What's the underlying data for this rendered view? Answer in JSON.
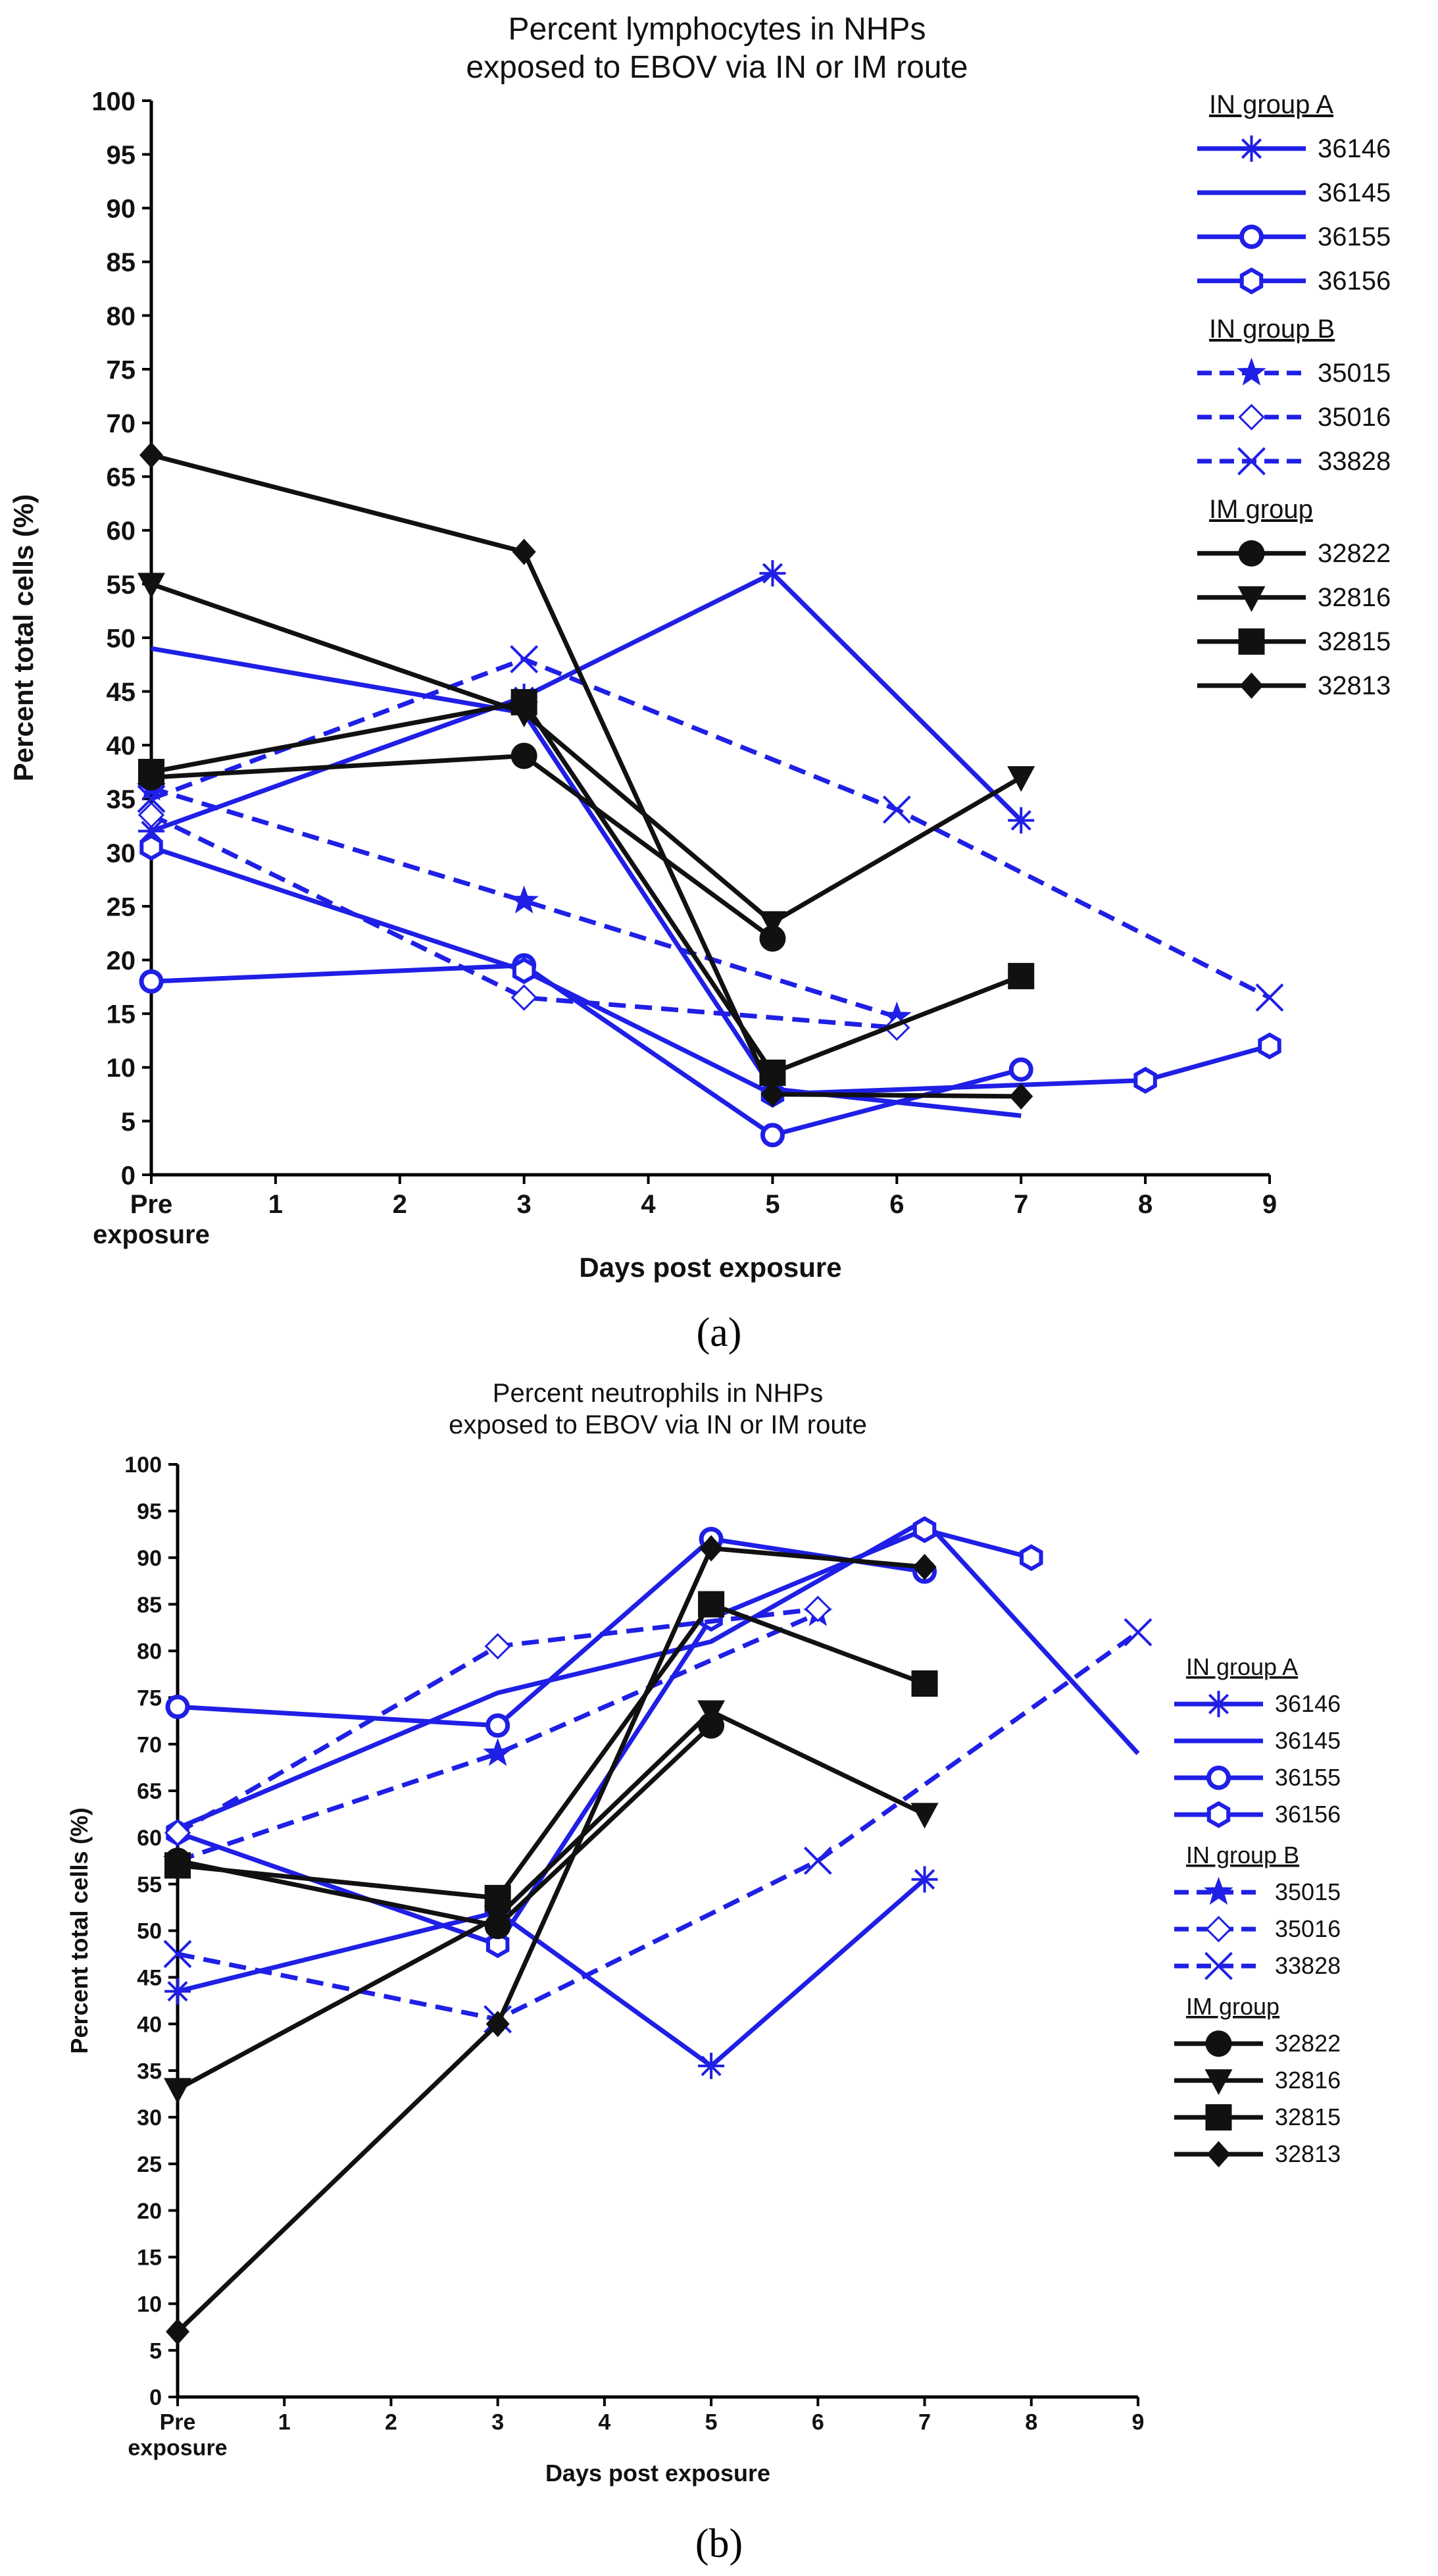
{
  "panel_labels": [
    "(a)",
    "(b)"
  ],
  "chart_data": [
    {
      "type": "line",
      "title": "Percent lymphocytes in NHPs exposed to EBOV via IN or IM route",
      "title_lines": [
        "Percent lymphocytes in NHPs",
        "exposed to EBOV via IN or IM route"
      ],
      "xlabel": "Days post exposure",
      "ylabel": "Percent total cells (%)",
      "xlim": [
        0,
        9
      ],
      "ylim": [
        0,
        100
      ],
      "xticks": [
        0,
        1,
        2,
        3,
        4,
        5,
        6,
        7,
        8,
        9
      ],
      "xtick_labels": [
        "Pre\nexposure",
        "1",
        "2",
        "3",
        "4",
        "5",
        "6",
        "7",
        "8",
        "9"
      ],
      "yticks": [
        0,
        5,
        10,
        15,
        20,
        25,
        30,
        35,
        40,
        45,
        50,
        55,
        60,
        65,
        70,
        75,
        80,
        85,
        90,
        95,
        100
      ],
      "grid": false,
      "legend_position": "right",
      "legend_groups": [
        {
          "title": "IN group  A",
          "series": [
            "36146",
            "36145",
            "36155",
            "36156"
          ]
        },
        {
          "title": "IN group  B",
          "series": [
            "35015",
            "35016",
            "33828"
          ]
        },
        {
          "title": "IM group",
          "series": [
            "32822",
            "32816",
            "32815",
            "32813"
          ]
        }
      ],
      "series": [
        {
          "name": "36146",
          "color": "#1f1fe6",
          "dash": "solid",
          "marker": "asterisk",
          "x": [
            0,
            3,
            5,
            7
          ],
          "y": [
            32,
            44.5,
            56,
            33
          ]
        },
        {
          "name": "36145",
          "color": "#1f1fe6",
          "dash": "solid",
          "marker": "none",
          "x": [
            0,
            3,
            5,
            7
          ],
          "y": [
            49,
            43,
            8,
            5.5
          ]
        },
        {
          "name": "36155",
          "color": "#1f1fe6",
          "dash": "solid",
          "marker": "open-circle",
          "x": [
            0,
            3,
            5,
            7
          ],
          "y": [
            18,
            19.5,
            3.7,
            9.8
          ]
        },
        {
          "name": "36156",
          "color": "#1f1fe6",
          "dash": "solid",
          "marker": "open-hexagon",
          "x": [
            0,
            3,
            5,
            8,
            9
          ],
          "y": [
            30.5,
            19,
            7.5,
            8.8,
            12
          ]
        },
        {
          "name": "35015",
          "color": "#1f1fe6",
          "dash": "dashed",
          "marker": "star",
          "x": [
            0,
            3,
            6
          ],
          "y": [
            36,
            25.5,
            14.7
          ]
        },
        {
          "name": "35016",
          "color": "#1f1fe6",
          "dash": "dashed",
          "marker": "open-diamond",
          "x": [
            0,
            3,
            6
          ],
          "y": [
            33.5,
            16.5,
            13.7
          ]
        },
        {
          "name": "33828",
          "color": "#1f1fe6",
          "dash": "dashed",
          "marker": "x",
          "x": [
            0,
            3,
            6,
            9
          ],
          "y": [
            35,
            48,
            34,
            16.5
          ]
        },
        {
          "name": "32822",
          "color": "#111111",
          "dash": "solid",
          "marker": "filled-circle",
          "x": [
            0,
            3,
            5
          ],
          "y": [
            37,
            39,
            22
          ]
        },
        {
          "name": "32816",
          "color": "#111111",
          "dash": "solid",
          "marker": "filled-triangle-down",
          "x": [
            0,
            3,
            5,
            7
          ],
          "y": [
            55,
            43,
            23.5,
            37
          ]
        },
        {
          "name": "32815",
          "color": "#111111",
          "dash": "solid",
          "marker": "filled-square",
          "x": [
            0,
            3,
            5,
            7
          ],
          "y": [
            37.5,
            44,
            9.5,
            18.5
          ]
        },
        {
          "name": "32813",
          "color": "#111111",
          "dash": "solid",
          "marker": "filled-diamond",
          "x": [
            0,
            3,
            5,
            7
          ],
          "y": [
            67,
            58,
            7.5,
            7.3
          ]
        }
      ]
    },
    {
      "type": "line",
      "title": "Percent neutrophils in NHPs exposed to EBOV via IN or IM route",
      "title_lines": [
        "Percent neutrophils in NHPs",
        "exposed to EBOV via IN or IM route"
      ],
      "xlabel": "Days post exposure",
      "ylabel": "Percent total cells (%)",
      "xlim": [
        0,
        9
      ],
      "ylim": [
        0,
        100
      ],
      "xticks": [
        0,
        1,
        2,
        3,
        4,
        5,
        6,
        7,
        8,
        9
      ],
      "xtick_labels": [
        "Pre\nexposure",
        "1",
        "2",
        "3",
        "4",
        "5",
        "6",
        "7",
        "8",
        "9"
      ],
      "yticks": [
        0,
        5,
        10,
        15,
        20,
        25,
        30,
        35,
        40,
        45,
        50,
        55,
        60,
        65,
        70,
        75,
        80,
        85,
        90,
        95,
        100
      ],
      "grid": false,
      "legend_position": "right",
      "legend_groups": [
        {
          "title": "IN group  A",
          "series": [
            "36146",
            "36145",
            "36155",
            "36156"
          ]
        },
        {
          "title": "IN group  B",
          "series": [
            "35015",
            "35016",
            "33828"
          ]
        },
        {
          "title": "IM group",
          "series": [
            "32822",
            "32816",
            "32815",
            "32813"
          ]
        }
      ],
      "series": [
        {
          "name": "36146",
          "color": "#1f1fe6",
          "dash": "solid",
          "marker": "asterisk",
          "x": [
            0,
            3,
            5,
            7
          ],
          "y": [
            43.5,
            52,
            35.5,
            55.5
          ]
        },
        {
          "name": "36145",
          "color": "#1f1fe6",
          "dash": "solid",
          "marker": "none",
          "x": [
            0,
            3,
            5,
            7,
            9
          ],
          "y": [
            61,
            75.5,
            81,
            94,
            69
          ]
        },
        {
          "name": "36155",
          "color": "#1f1fe6",
          "dash": "solid",
          "marker": "open-circle",
          "x": [
            0,
            3,
            5,
            7
          ],
          "y": [
            74,
            72,
            92,
            88.5
          ]
        },
        {
          "name": "36156",
          "color": "#1f1fe6",
          "dash": "solid",
          "marker": "open-hexagon",
          "x": [
            0,
            3,
            5,
            7,
            8
          ],
          "y": [
            60.5,
            48.5,
            83.5,
            93,
            90
          ]
        },
        {
          "name": "35015",
          "color": "#1f1fe6",
          "dash": "dashed",
          "marker": "star",
          "x": [
            0,
            3,
            6
          ],
          "y": [
            57.5,
            69,
            84
          ]
        },
        {
          "name": "35016",
          "color": "#1f1fe6",
          "dash": "dashed",
          "marker": "open-diamond",
          "x": [
            0,
            3,
            6
          ],
          "y": [
            60.5,
            80.5,
            84.5
          ]
        },
        {
          "name": "33828",
          "color": "#1f1fe6",
          "dash": "dashed",
          "marker": "x",
          "x": [
            0,
            3,
            6,
            9
          ],
          "y": [
            47.5,
            40.5,
            57.5,
            82
          ]
        },
        {
          "name": "32822",
          "color": "#111111",
          "dash": "solid",
          "marker": "filled-circle",
          "x": [
            0,
            3,
            5
          ],
          "y": [
            57.5,
            50.5,
            72
          ]
        },
        {
          "name": "32816",
          "color": "#111111",
          "dash": "solid",
          "marker": "filled-triangle-down",
          "x": [
            0,
            3,
            5,
            7
          ],
          "y": [
            33,
            51.5,
            73.5,
            62.5
          ]
        },
        {
          "name": "32815",
          "color": "#111111",
          "dash": "solid",
          "marker": "filled-square",
          "x": [
            0,
            3,
            5,
            7
          ],
          "y": [
            57,
            53.5,
            85,
            76.5
          ]
        },
        {
          "name": "32813",
          "color": "#111111",
          "dash": "solid",
          "marker": "filled-diamond",
          "x": [
            0,
            3,
            5,
            7
          ],
          "y": [
            7,
            40,
            91,
            89
          ]
        }
      ]
    }
  ]
}
